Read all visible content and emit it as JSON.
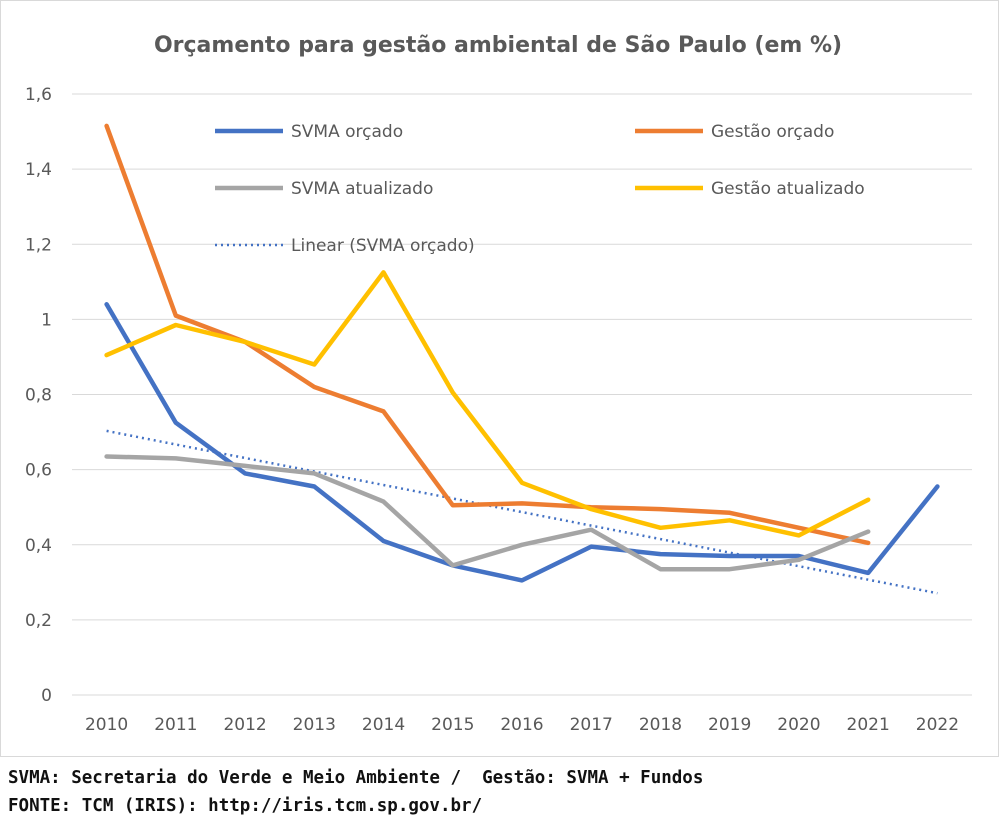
{
  "chart_data": {
    "type": "line",
    "title": "Orçamento para gestão ambiental de São Paulo (em %)",
    "categories": [
      "2010",
      "2011",
      "2012",
      "2013",
      "2014",
      "2015",
      "2016",
      "2017",
      "2018",
      "2019",
      "2020",
      "2021",
      "2022"
    ],
    "y_ticks": [
      "0",
      "0,2",
      "0,4",
      "0,6",
      "0,8",
      "1",
      "1,2",
      "1,4",
      "1,6"
    ],
    "ylim": [
      0,
      1.6
    ],
    "grid": true,
    "legend_placement": "inside-top",
    "series": [
      {
        "name": "SVMA orçado",
        "color": "#4472C4",
        "style": "solid",
        "values": [
          1.04,
          0.725,
          0.59,
          0.555,
          0.41,
          0.345,
          0.305,
          0.395,
          0.375,
          0.37,
          0.37,
          0.325,
          0.555
        ]
      },
      {
        "name": "Gestão orçado",
        "color": "#ED7D31",
        "style": "solid",
        "values": [
          1.515,
          1.01,
          0.94,
          0.82,
          0.755,
          0.505,
          0.51,
          0.5,
          0.495,
          0.485,
          0.445,
          0.405,
          null
        ]
      },
      {
        "name": "SVMA atualizado",
        "color": "#A5A5A5",
        "style": "solid",
        "values": [
          0.635,
          0.63,
          0.61,
          0.59,
          0.515,
          0.345,
          0.4,
          0.44,
          0.335,
          0.335,
          0.36,
          0.435,
          null
        ]
      },
      {
        "name": "Gestão atualizado",
        "color": "#FFC000",
        "style": "solid",
        "values": [
          0.905,
          0.985,
          0.94,
          0.88,
          1.125,
          0.805,
          0.565,
          0.495,
          0.445,
          0.465,
          0.425,
          0.52,
          null
        ]
      },
      {
        "name": "Linear (SVMA orçado)",
        "color": "#4472C4",
        "style": "dotted",
        "values": [
          0.703,
          0.667,
          0.631,
          0.595,
          0.559,
          0.523,
          0.487,
          0.451,
          0.415,
          0.379,
          0.343,
          0.307,
          0.271
        ]
      }
    ]
  },
  "footer": {
    "line1": "SVMA: Secretaria do Verde e Meio Ambiente /  Gestão: SVMA + Fundos",
    "line2": "FONTE: TCM (IRIS): http://iris.tcm.sp.gov.br/"
  }
}
